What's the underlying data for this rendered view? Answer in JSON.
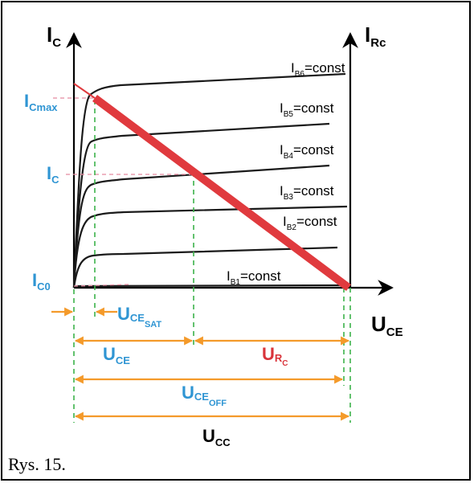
{
  "figure": {
    "caption": "Rys. 15.",
    "colors": {
      "axis": "#000000",
      "blue_text": "#2f95d3",
      "red_text": "#d9343b",
      "load_line": "#e03a3e",
      "dashed_green": "#3cb24a",
      "dashed_pink": "#e58aa0",
      "arrow_orange": "#f49a2a"
    },
    "axes": {
      "y_left": {
        "main": "I",
        "sub": "C"
      },
      "y_right": {
        "main": "I",
        "sub": "Rc"
      },
      "x": {
        "main": "U",
        "sub": "CE"
      }
    },
    "y_markers": {
      "icmax": {
        "main": "I",
        "sub": "Cmax"
      },
      "ic": {
        "main": "I",
        "sub": "C"
      },
      "ic0": {
        "main": "I",
        "sub": "C0"
      }
    },
    "curves": [
      {
        "main": "I",
        "sub": "B6",
        "suffix": "=const"
      },
      {
        "main": "I",
        "sub": "B5",
        "suffix": "=const"
      },
      {
        "main": "I",
        "sub": "B4",
        "suffix": "=const"
      },
      {
        "main": "I",
        "sub": "B3",
        "suffix": "=const"
      },
      {
        "main": "I",
        "sub": "B2",
        "suffix": "=const"
      },
      {
        "main": "I",
        "sub": "B1",
        "suffix": "=const"
      }
    ],
    "dimensions": {
      "uce_sat": {
        "main": "U",
        "sub": "CE",
        "subsub": "SAT"
      },
      "uce": {
        "main": "U",
        "sub": "CE"
      },
      "urc": {
        "main": "U",
        "sub": "R",
        "subsub": "C"
      },
      "uce_off": {
        "main": "U",
        "sub": "CE",
        "subsub": "OFF"
      },
      "ucc": {
        "main": "U",
        "sub": "CC"
      }
    }
  }
}
